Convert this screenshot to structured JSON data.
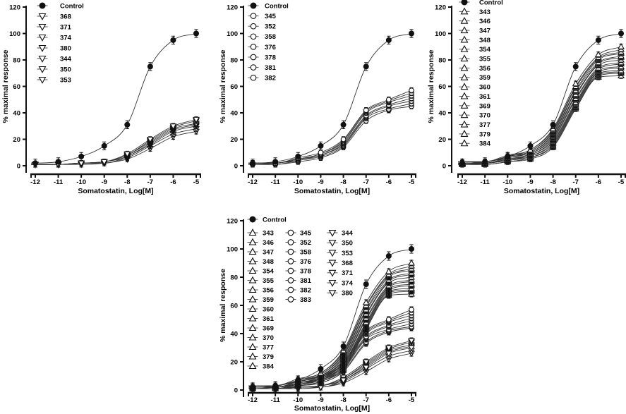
{
  "figure": {
    "xlabel": "Somatostatin, Log[M]",
    "ylabel": "% maximal response",
    "colors": {
      "axis": "#111111",
      "curve": "#333333",
      "text": "#000000",
      "marker_fill": "#111111",
      "background": "#ffffff"
    }
  },
  "series_defs": {
    "Control": {
      "marker": "filled-circle",
      "err": 3,
      "values": [
        2,
        3,
        7,
        15,
        31,
        75,
        95,
        100
      ]
    },
    "343": {
      "marker": "triangle-up",
      "err": 2,
      "values": [
        3,
        3,
        8,
        12,
        28,
        62,
        84,
        90
      ]
    },
    "346": {
      "marker": "triangle-up",
      "err": 2,
      "values": [
        3,
        3,
        7,
        12,
        27,
        60,
        82,
        88
      ]
    },
    "347": {
      "marker": "triangle-up",
      "err": 2,
      "values": [
        3,
        3,
        7,
        11,
        26,
        59,
        81,
        86
      ]
    },
    "348": {
      "marker": "triangle-up",
      "err": 2,
      "values": [
        2,
        3,
        6,
        11,
        25,
        57,
        80,
        85
      ]
    },
    "354": {
      "marker": "triangle-up",
      "err": 2,
      "values": [
        2,
        3,
        6,
        10,
        24,
        56,
        78,
        83
      ]
    },
    "355": {
      "marker": "triangle-up",
      "err": 2,
      "values": [
        2,
        2,
        6,
        10,
        23,
        54,
        77,
        82
      ]
    },
    "356": {
      "marker": "triangle-up",
      "err": 2,
      "values": [
        2,
        2,
        5,
        9,
        22,
        53,
        76,
        80
      ]
    },
    "359": {
      "marker": "triangle-up",
      "err": 2,
      "values": [
        2,
        2,
        5,
        9,
        21,
        51,
        74,
        78
      ]
    },
    "360": {
      "marker": "triangle-up",
      "err": 2,
      "values": [
        2,
        2,
        5,
        8,
        20,
        50,
        73,
        77
      ]
    },
    "361": {
      "marker": "triangle-up",
      "err": 2,
      "values": [
        2,
        2,
        4,
        8,
        19,
        48,
        72,
        75
      ]
    },
    "369": {
      "marker": "triangle-up",
      "err": 2,
      "values": [
        2,
        2,
        4,
        7,
        18,
        47,
        71,
        74
      ]
    },
    "370": {
      "marker": "triangle-up",
      "err": 2,
      "values": [
        1,
        2,
        4,
        7,
        17,
        46,
        70,
        72
      ]
    },
    "377": {
      "marker": "triangle-up",
      "err": 2,
      "values": [
        1,
        1,
        3,
        6,
        16,
        45,
        69,
        71
      ]
    },
    "379": {
      "marker": "triangle-up",
      "err": 2,
      "values": [
        1,
        1,
        3,
        6,
        15,
        44,
        68,
        70
      ]
    },
    "384": {
      "marker": "triangle-up",
      "err": 2,
      "values": [
        1,
        1,
        3,
        5,
        14,
        43,
        67,
        68
      ]
    },
    "345": {
      "marker": "circle",
      "err": 2,
      "values": [
        2,
        2,
        6,
        10,
        20,
        42,
        50,
        57
      ]
    },
    "352": {
      "marker": "circle",
      "err": 2,
      "values": [
        2,
        2,
        5,
        9,
        19,
        41,
        49,
        55
      ]
    },
    "358": {
      "marker": "circle",
      "err": 2,
      "values": [
        2,
        2,
        5,
        9,
        18,
        40,
        48,
        53
      ]
    },
    "376": {
      "marker": "circle",
      "err": 2,
      "values": [
        2,
        2,
        5,
        8,
        17,
        38,
        46,
        51
      ]
    },
    "378": {
      "marker": "circle",
      "err": 2,
      "values": [
        1,
        2,
        4,
        8,
        16,
        37,
        45,
        49
      ]
    },
    "381": {
      "marker": "circle",
      "err": 2,
      "values": [
        1,
        1,
        4,
        7,
        15,
        36,
        43,
        47
      ]
    },
    "382": {
      "marker": "circle",
      "err": 2,
      "values": [
        1,
        1,
        3,
        6,
        14,
        34,
        42,
        45
      ]
    },
    "383": {
      "marker": "circle",
      "err": 2,
      "values": [
        1,
        1,
        3,
        5,
        13,
        33,
        41,
        44
      ]
    },
    "368": {
      "marker": "triangle-down",
      "err": 2,
      "values": [
        1,
        1,
        2,
        3,
        9,
        20,
        30,
        35
      ]
    },
    "371": {
      "marker": "triangle-down",
      "err": 2,
      "values": [
        1,
        1,
        2,
        3,
        8,
        19,
        29,
        34
      ]
    },
    "374": {
      "marker": "triangle-down",
      "err": 2,
      "values": [
        1,
        1,
        2,
        3,
        8,
        18,
        28,
        32
      ]
    },
    "380": {
      "marker": "triangle-down",
      "err": 2,
      "values": [
        1,
        1,
        2,
        3,
        7,
        17,
        27,
        31
      ]
    },
    "344": {
      "marker": "triangle-down",
      "err": 2,
      "values": [
        1,
        1,
        2,
        2,
        7,
        16,
        26,
        30
      ]
    },
    "350": {
      "marker": "triangle-down",
      "err": 2,
      "values": [
        1,
        1,
        2,
        2,
        6,
        15,
        24,
        28
      ]
    },
    "353": {
      "marker": "triangle-down",
      "err": 2,
      "values": [
        1,
        1,
        1,
        2,
        5,
        13,
        22,
        26
      ]
    }
  },
  "chart_data": [
    {
      "type": "line",
      "panel": "top-left",
      "title": "",
      "xlabel": "Somatostatin, Log[M]",
      "ylabel": "% maximal response",
      "x": [
        -12,
        -11,
        -10,
        -9,
        -8,
        -7,
        -6,
        -5
      ],
      "x_tick_labels": [
        "-12",
        "-11",
        "-10",
        "-9",
        "-8",
        "-7",
        "-6",
        "-5"
      ],
      "y_ticks": [
        0,
        20,
        40,
        60,
        80,
        100,
        120
      ],
      "xlim": [
        -12,
        -5
      ],
      "ylim": [
        0,
        120
      ],
      "grid": false,
      "legend_position": "top-left",
      "series": [
        "Control",
        "368",
        "371",
        "374",
        "380",
        "344",
        "350",
        "353"
      ],
      "legend_columns": [
        [
          "Control",
          "368",
          "371",
          "374",
          "380",
          "344",
          "350",
          "353"
        ]
      ]
    },
    {
      "type": "line",
      "panel": "top-middle",
      "title": "",
      "xlabel": "Somatostatin, Log[M]",
      "ylabel": "% maximal response",
      "x": [
        -12,
        -11,
        -10,
        -9,
        -8,
        -7,
        -6,
        -5
      ],
      "x_tick_labels": [
        "-12",
        "-11",
        "-10",
        "-9",
        "-8",
        "-7",
        "-6",
        "-5"
      ],
      "y_ticks": [
        0,
        20,
        40,
        60,
        80,
        100,
        120
      ],
      "xlim": [
        -12,
        -5
      ],
      "ylim": [
        0,
        120
      ],
      "grid": false,
      "legend_position": "top-left",
      "series": [
        "Control",
        "345",
        "352",
        "358",
        "376",
        "378",
        "381",
        "382"
      ],
      "legend_columns": [
        [
          "Control",
          "345",
          "352",
          "358",
          "376",
          "378",
          "381",
          "382"
        ]
      ]
    },
    {
      "type": "line",
      "panel": "top-right",
      "title": "",
      "xlabel": "Somatostatin, Log[M]",
      "ylabel": "% maximal response",
      "x": [
        -12,
        -11,
        -10,
        -9,
        -8,
        -7,
        -6,
        -5
      ],
      "x_tick_labels": [
        "-12",
        "-11",
        "-10",
        "-9",
        "-8",
        "-7",
        "-6",
        "-5"
      ],
      "y_ticks": [
        0,
        20,
        40,
        60,
        80,
        100,
        120
      ],
      "xlim": [
        -12,
        -5
      ],
      "ylim": [
        0,
        120
      ],
      "grid": false,
      "legend_position": "top-left",
      "series": [
        "Control",
        "343",
        "346",
        "347",
        "348",
        "354",
        "355",
        "356",
        "359",
        "360",
        "361",
        "369",
        "370",
        "377",
        "379",
        "384"
      ],
      "legend_columns": [
        [
          "Control",
          "343",
          "346",
          "347",
          "348",
          "354",
          "355",
          "356",
          "359",
          "360",
          "361",
          "369",
          "370",
          "377",
          "379",
          "384"
        ]
      ]
    },
    {
      "type": "line",
      "panel": "bottom",
      "title": "",
      "xlabel": "Somatostatin, Log[M]",
      "ylabel": "% maximal response",
      "x": [
        -12,
        -11,
        -10,
        -9,
        -8,
        -7,
        -6,
        -5
      ],
      "x_tick_labels": [
        "-12",
        "-11",
        "-10",
        "-9",
        "-8",
        "-7",
        "-6",
        "-5"
      ],
      "y_ticks": [
        0,
        20,
        40,
        60,
        80,
        100,
        120
      ],
      "xlim": [
        -12,
        -5
      ],
      "ylim": [
        0,
        120
      ],
      "grid": false,
      "legend_position": "top-left",
      "series": [
        "Control",
        "343",
        "346",
        "347",
        "348",
        "354",
        "355",
        "356",
        "359",
        "360",
        "361",
        "369",
        "370",
        "377",
        "379",
        "384",
        "345",
        "352",
        "358",
        "376",
        "378",
        "381",
        "382",
        "383",
        "344",
        "350",
        "353",
        "368",
        "371",
        "374",
        "380"
      ],
      "legend_columns": [
        [
          "Control"
        ],
        [
          "343",
          "346",
          "347",
          "348",
          "354",
          "355",
          "356",
          "359",
          "360",
          "361",
          "369",
          "370",
          "377",
          "379",
          "384"
        ],
        [
          "345",
          "352",
          "358",
          "376",
          "378",
          "381",
          "382",
          "383"
        ],
        [
          "344",
          "350",
          "353",
          "368",
          "371",
          "374",
          "380"
        ]
      ]
    }
  ]
}
